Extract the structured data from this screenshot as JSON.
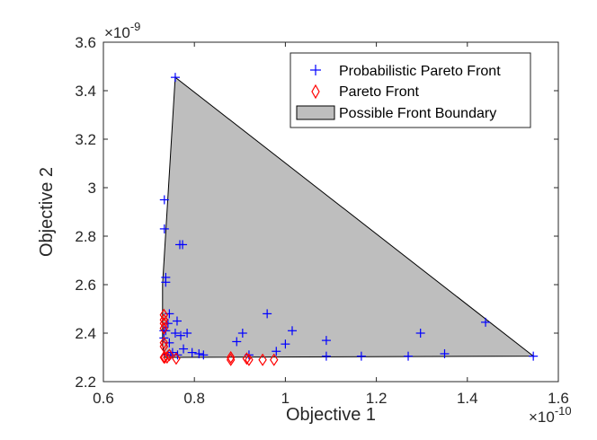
{
  "chart_data": {
    "type": "scatter",
    "xlabel": "Objective 1",
    "ylabel": "Objective 2",
    "x_multiplier": "×10",
    "x_exponent": "-10",
    "y_multiplier": "×10",
    "y_exponent": "-9",
    "xlim": [
      0.6,
      1.6
    ],
    "ylim": [
      2.2,
      3.6
    ],
    "x_ticks": [
      0.6,
      0.8,
      1.0,
      1.2,
      1.4,
      1.6
    ],
    "x_tick_labels": [
      "0.6",
      "0.8",
      "1",
      "1.2",
      "1.4",
      "1.6"
    ],
    "y_ticks": [
      2.2,
      2.4,
      2.6,
      2.8,
      3.0,
      3.2,
      3.4,
      3.6
    ],
    "y_tick_labels": [
      "2.2",
      "2.4",
      "2.6",
      "2.8",
      "3",
      "3.2",
      "3.4",
      "3.6"
    ],
    "grid": false,
    "legend_position": "top-right",
    "series": [
      {
        "name": "Probabilistic Pareto Front",
        "marker": "plus",
        "color": "#0000ff",
        "x": [
          0.758,
          0.734,
          0.734,
          0.737,
          0.737,
          0.768,
          0.774,
          0.745,
          0.742,
          0.762,
          0.733,
          0.737,
          0.733,
          0.745,
          0.752,
          0.758,
          0.77,
          0.784,
          0.776,
          0.742,
          0.748,
          0.763,
          0.795,
          0.81,
          0.82,
          0.893,
          0.906,
          0.92,
          0.96,
          0.98,
          1.0,
          1.015,
          1.09,
          1.09,
          1.167,
          1.27,
          1.297,
          1.35,
          1.44,
          1.545
        ],
        "y": [
          3.455,
          2.95,
          2.83,
          2.63,
          2.61,
          2.765,
          2.765,
          2.48,
          2.44,
          2.45,
          2.41,
          2.41,
          2.38,
          2.36,
          2.32,
          2.4,
          2.39,
          2.4,
          2.335,
          2.31,
          2.31,
          2.31,
          2.32,
          2.315,
          2.31,
          2.365,
          2.4,
          2.31,
          2.48,
          2.325,
          2.355,
          2.41,
          2.37,
          2.305,
          2.305,
          2.305,
          2.4,
          2.315,
          2.445,
          2.305
        ]
      },
      {
        "name": "Pareto Front",
        "marker": "diamond",
        "color": "#ff0000",
        "x": [
          0.733,
          0.733,
          0.733,
          0.733,
          0.733,
          0.733,
          0.733,
          0.735,
          0.74,
          0.745,
          0.76,
          0.88,
          0.88,
          0.915,
          0.92,
          0.95,
          0.975
        ],
        "y": [
          2.475,
          2.455,
          2.44,
          2.42,
          2.36,
          2.345,
          2.3,
          2.3,
          2.3,
          2.31,
          2.295,
          2.3,
          2.29,
          2.295,
          2.29,
          2.29,
          2.29
        ]
      }
    ],
    "boundary": {
      "name": "Possible Front Boundary",
      "fill": "#bebebe",
      "stroke": "#000000",
      "x": [
        0.758,
        0.73,
        0.73,
        0.735,
        1.545
      ],
      "y": [
        3.455,
        2.6,
        2.35,
        2.3,
        2.305
      ]
    }
  }
}
